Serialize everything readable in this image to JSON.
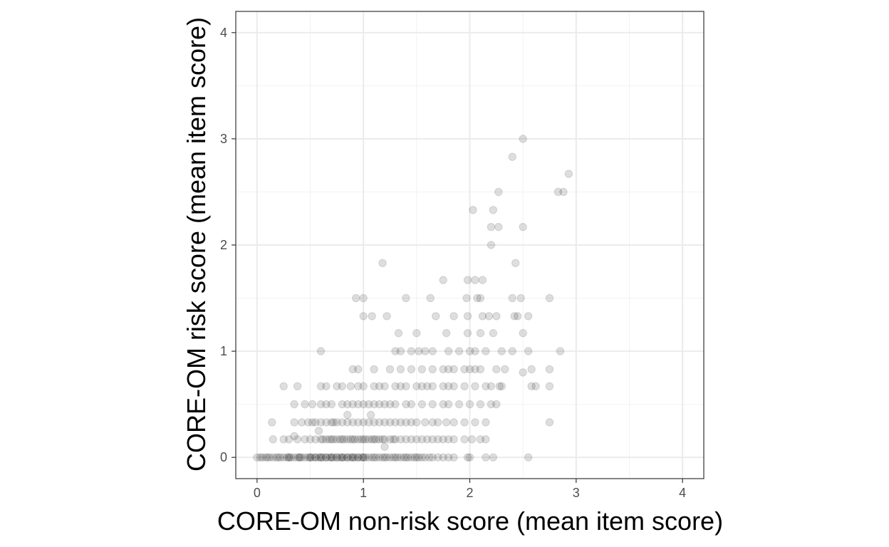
{
  "chart_data": {
    "type": "scatter",
    "title": "",
    "xlabel": "CORE-OM non-risk score (mean item score)",
    "ylabel": "CORE-OM risk score (mean item score)",
    "xlim": [
      -0.2,
      4.2
    ],
    "ylim": [
      -0.2,
      4.2
    ],
    "x_ticks": [
      0,
      1,
      2,
      3,
      4
    ],
    "y_ticks": [
      0,
      1,
      2,
      3,
      4
    ],
    "x_tick_labels": [
      "0",
      "1",
      "2",
      "3",
      "4"
    ],
    "y_tick_labels": [
      "0",
      "1",
      "2",
      "3",
      "4"
    ],
    "grid": true,
    "legend": "none",
    "point_color": "#000000",
    "point_alpha": 0.13,
    "points": [
      [
        0.0,
        0
      ],
      [
        0.03,
        0
      ],
      [
        0.05,
        0
      ],
      [
        0.08,
        0
      ],
      [
        0.1,
        0
      ],
      [
        0.12,
        0
      ],
      [
        0.15,
        0
      ],
      [
        0.18,
        0
      ],
      [
        0.2,
        0
      ],
      [
        0.22,
        0
      ],
      [
        0.25,
        0
      ],
      [
        0.28,
        0
      ],
      [
        0.3,
        0
      ],
      [
        0.32,
        0
      ],
      [
        0.35,
        0
      ],
      [
        0.38,
        0
      ],
      [
        0.4,
        0
      ],
      [
        0.42,
        0
      ],
      [
        0.45,
        0
      ],
      [
        0.48,
        0
      ],
      [
        0.5,
        0
      ],
      [
        0.52,
        0
      ],
      [
        0.55,
        0
      ],
      [
        0.58,
        0
      ],
      [
        0.6,
        0
      ],
      [
        0.62,
        0
      ],
      [
        0.65,
        0
      ],
      [
        0.68,
        0
      ],
      [
        0.7,
        0
      ],
      [
        0.72,
        0
      ],
      [
        0.75,
        0
      ],
      [
        0.78,
        0
      ],
      [
        0.8,
        0
      ],
      [
        0.82,
        0
      ],
      [
        0.85,
        0
      ],
      [
        0.88,
        0
      ],
      [
        0.9,
        0
      ],
      [
        0.92,
        0
      ],
      [
        0.95,
        0
      ],
      [
        0.98,
        0
      ],
      [
        1.0,
        0
      ],
      [
        1.02,
        0
      ],
      [
        1.05,
        0
      ],
      [
        1.08,
        0
      ],
      [
        1.1,
        0
      ],
      [
        1.12,
        0
      ],
      [
        1.15,
        0
      ],
      [
        1.18,
        0
      ],
      [
        1.2,
        0
      ],
      [
        1.22,
        0
      ],
      [
        1.25,
        0
      ],
      [
        1.28,
        0
      ],
      [
        1.3,
        0
      ],
      [
        1.32,
        0
      ],
      [
        1.35,
        0
      ],
      [
        1.38,
        0
      ],
      [
        1.4,
        0
      ],
      [
        1.42,
        0
      ],
      [
        1.45,
        0
      ],
      [
        1.48,
        0
      ],
      [
        1.5,
        0
      ],
      [
        1.52,
        0
      ],
      [
        1.55,
        0
      ],
      [
        1.58,
        0
      ],
      [
        1.62,
        0
      ],
      [
        1.65,
        0
      ],
      [
        1.7,
        0
      ],
      [
        1.75,
        0
      ],
      [
        1.8,
        0
      ],
      [
        1.85,
        0
      ],
      [
        1.98,
        0
      ],
      [
        2.0,
        0
      ],
      [
        2.15,
        0
      ],
      [
        2.22,
        0
      ],
      [
        2.55,
        0
      ],
      [
        0.5,
        0
      ],
      [
        0.6,
        0
      ],
      [
        0.7,
        0
      ],
      [
        0.8,
        0
      ],
      [
        0.9,
        0
      ],
      [
        1.0,
        0
      ],
      [
        0.55,
        0
      ],
      [
        0.65,
        0
      ],
      [
        0.75,
        0
      ],
      [
        0.85,
        0
      ],
      [
        0.95,
        0
      ],
      [
        0.3,
        0
      ],
      [
        0.4,
        0
      ],
      [
        0.15,
        0.17
      ],
      [
        0.25,
        0.17
      ],
      [
        0.3,
        0.17
      ],
      [
        0.38,
        0.17
      ],
      [
        0.45,
        0.17
      ],
      [
        0.5,
        0.17
      ],
      [
        0.55,
        0.17
      ],
      [
        0.6,
        0.17
      ],
      [
        0.62,
        0.17
      ],
      [
        0.65,
        0.17
      ],
      [
        0.68,
        0.17
      ],
      [
        0.7,
        0.17
      ],
      [
        0.72,
        0.17
      ],
      [
        0.75,
        0.17
      ],
      [
        0.78,
        0.17
      ],
      [
        0.8,
        0.17
      ],
      [
        0.82,
        0.17
      ],
      [
        0.85,
        0.17
      ],
      [
        0.88,
        0.17
      ],
      [
        0.9,
        0.17
      ],
      [
        0.92,
        0.17
      ],
      [
        0.95,
        0.17
      ],
      [
        0.98,
        0.17
      ],
      [
        1.0,
        0.17
      ],
      [
        1.02,
        0.17
      ],
      [
        1.05,
        0.17
      ],
      [
        1.08,
        0.17
      ],
      [
        1.1,
        0.17
      ],
      [
        1.12,
        0.17
      ],
      [
        1.15,
        0.17
      ],
      [
        1.18,
        0.17
      ],
      [
        1.2,
        0.17
      ],
      [
        1.25,
        0.17
      ],
      [
        1.28,
        0.17
      ],
      [
        1.3,
        0.17
      ],
      [
        1.35,
        0.17
      ],
      [
        1.4,
        0.17
      ],
      [
        1.45,
        0.17
      ],
      [
        1.5,
        0.17
      ],
      [
        1.55,
        0.17
      ],
      [
        1.6,
        0.17
      ],
      [
        1.65,
        0.17
      ],
      [
        1.7,
        0.17
      ],
      [
        1.75,
        0.17
      ],
      [
        1.8,
        0.17
      ],
      [
        1.85,
        0.17
      ],
      [
        1.95,
        0.17
      ],
      [
        2.02,
        0.17
      ],
      [
        2.1,
        0.17
      ],
      [
        2.15,
        0.17
      ],
      [
        0.14,
        0.33
      ],
      [
        0.35,
        0.33
      ],
      [
        0.42,
        0.33
      ],
      [
        0.48,
        0.33
      ],
      [
        0.52,
        0.33
      ],
      [
        0.55,
        0.33
      ],
      [
        0.6,
        0.33
      ],
      [
        0.65,
        0.33
      ],
      [
        0.7,
        0.33
      ],
      [
        0.72,
        0.33
      ],
      [
        0.75,
        0.33
      ],
      [
        0.8,
        0.33
      ],
      [
        0.85,
        0.33
      ],
      [
        0.9,
        0.33
      ],
      [
        0.95,
        0.33
      ],
      [
        1.0,
        0.33
      ],
      [
        1.05,
        0.33
      ],
      [
        1.1,
        0.33
      ],
      [
        1.15,
        0.33
      ],
      [
        1.2,
        0.33
      ],
      [
        1.25,
        0.33
      ],
      [
        1.3,
        0.33
      ],
      [
        1.35,
        0.33
      ],
      [
        1.4,
        0.33
      ],
      [
        1.45,
        0.33
      ],
      [
        1.5,
        0.33
      ],
      [
        1.58,
        0.33
      ],
      [
        1.65,
        0.33
      ],
      [
        1.7,
        0.33
      ],
      [
        1.78,
        0.33
      ],
      [
        1.85,
        0.33
      ],
      [
        1.95,
        0.33
      ],
      [
        2.05,
        0.33
      ],
      [
        2.15,
        0.33
      ],
      [
        2.75,
        0.33
      ],
      [
        0.35,
        0.5
      ],
      [
        0.45,
        0.5
      ],
      [
        0.52,
        0.5
      ],
      [
        0.6,
        0.5
      ],
      [
        0.65,
        0.5
      ],
      [
        0.7,
        0.5
      ],
      [
        0.8,
        0.5
      ],
      [
        0.85,
        0.5
      ],
      [
        0.9,
        0.5
      ],
      [
        0.95,
        0.5
      ],
      [
        1.0,
        0.5
      ],
      [
        1.05,
        0.5
      ],
      [
        1.1,
        0.5
      ],
      [
        1.15,
        0.5
      ],
      [
        1.2,
        0.5
      ],
      [
        1.25,
        0.5
      ],
      [
        1.3,
        0.5
      ],
      [
        1.4,
        0.5
      ],
      [
        1.45,
        0.5
      ],
      [
        1.55,
        0.5
      ],
      [
        1.65,
        0.5
      ],
      [
        1.75,
        0.5
      ],
      [
        1.8,
        0.5
      ],
      [
        1.9,
        0.5
      ],
      [
        2.0,
        0.5
      ],
      [
        2.1,
        0.5
      ],
      [
        2.2,
        0.5
      ],
      [
        2.25,
        0.5
      ],
      [
        0.25,
        0.67
      ],
      [
        0.38,
        0.67
      ],
      [
        0.6,
        0.67
      ],
      [
        0.65,
        0.67
      ],
      [
        0.75,
        0.67
      ],
      [
        0.8,
        0.67
      ],
      [
        0.88,
        0.67
      ],
      [
        0.95,
        0.67
      ],
      [
        1.0,
        0.67
      ],
      [
        1.1,
        0.67
      ],
      [
        1.15,
        0.67
      ],
      [
        1.2,
        0.67
      ],
      [
        1.3,
        0.67
      ],
      [
        1.35,
        0.67
      ],
      [
        1.4,
        0.67
      ],
      [
        1.5,
        0.67
      ],
      [
        1.55,
        0.67
      ],
      [
        1.6,
        0.67
      ],
      [
        1.65,
        0.67
      ],
      [
        1.75,
        0.67
      ],
      [
        1.8,
        0.67
      ],
      [
        1.85,
        0.67
      ],
      [
        1.95,
        0.67
      ],
      [
        2.05,
        0.67
      ],
      [
        2.15,
        0.67
      ],
      [
        2.2,
        0.67
      ],
      [
        2.28,
        0.67
      ],
      [
        2.3,
        0.67
      ],
      [
        2.58,
        0.67
      ],
      [
        2.62,
        0.67
      ],
      [
        2.75,
        0.67
      ],
      [
        0.9,
        0.83
      ],
      [
        0.95,
        0.83
      ],
      [
        1.1,
        0.83
      ],
      [
        1.25,
        0.83
      ],
      [
        1.35,
        0.83
      ],
      [
        1.45,
        0.83
      ],
      [
        1.55,
        0.83
      ],
      [
        1.65,
        0.83
      ],
      [
        1.75,
        0.83
      ],
      [
        1.8,
        0.83
      ],
      [
        1.85,
        0.83
      ],
      [
        1.95,
        0.83
      ],
      [
        2.0,
        0.83
      ],
      [
        2.05,
        0.83
      ],
      [
        2.1,
        0.83
      ],
      [
        2.25,
        0.83
      ],
      [
        2.33,
        0.83
      ],
      [
        2.5,
        0.8
      ],
      [
        2.58,
        0.83
      ],
      [
        2.75,
        0.83
      ],
      [
        0.6,
        1.0
      ],
      [
        1.3,
        1.0
      ],
      [
        1.35,
        1.0
      ],
      [
        1.45,
        1.0
      ],
      [
        1.52,
        1.0
      ],
      [
        1.58,
        1.0
      ],
      [
        1.65,
        1.0
      ],
      [
        1.8,
        1.0
      ],
      [
        1.9,
        1.0
      ],
      [
        2.0,
        1.0
      ],
      [
        2.05,
        1.0
      ],
      [
        2.15,
        1.0
      ],
      [
        2.3,
        1.0
      ],
      [
        2.4,
        1.0
      ],
      [
        2.55,
        1.0
      ],
      [
        2.85,
        1.0
      ],
      [
        1.33,
        1.17
      ],
      [
        1.5,
        1.17
      ],
      [
        1.78,
        1.17
      ],
      [
        1.98,
        1.17
      ],
      [
        2.1,
        1.17
      ],
      [
        2.22,
        1.17
      ],
      [
        2.5,
        1.17
      ],
      [
        1.08,
        1.33
      ],
      [
        1.22,
        1.33
      ],
      [
        1.68,
        1.33
      ],
      [
        1.85,
        1.33
      ],
      [
        1.98,
        1.33
      ],
      [
        2.12,
        1.33
      ],
      [
        2.18,
        1.33
      ],
      [
        2.25,
        1.33
      ],
      [
        2.42,
        1.33
      ],
      [
        2.45,
        1.33
      ],
      [
        2.55,
        1.33
      ],
      [
        0.93,
        1.5
      ],
      [
        1.0,
        1.5
      ],
      [
        1.4,
        1.5
      ],
      [
        1.63,
        1.5
      ],
      [
        1.97,
        1.5
      ],
      [
        2.07,
        1.5
      ],
      [
        2.1,
        1.5
      ],
      [
        2.4,
        1.5
      ],
      [
        2.48,
        1.5
      ],
      [
        2.75,
        1.5
      ],
      [
        1.0,
        1.33
      ],
      [
        1.75,
        1.67
      ],
      [
        1.98,
        1.67
      ],
      [
        2.05,
        1.67
      ],
      [
        2.12,
        1.67
      ],
      [
        1.18,
        1.83
      ],
      [
        2.43,
        1.83
      ],
      [
        2.2,
        2.0
      ],
      [
        2.2,
        2.17
      ],
      [
        2.27,
        2.17
      ],
      [
        2.5,
        2.17
      ],
      [
        2.03,
        2.33
      ],
      [
        2.22,
        2.33
      ],
      [
        2.27,
        2.5
      ],
      [
        2.83,
        2.5
      ],
      [
        2.88,
        2.5
      ],
      [
        2.93,
        2.67
      ],
      [
        2.4,
        2.83
      ],
      [
        2.5,
        3.0
      ],
      [
        0.35,
        0.2
      ],
      [
        0.58,
        0.25
      ],
      [
        0.85,
        0.4
      ],
      [
        1.07,
        0.4
      ],
      [
        1.2,
        0.1
      ]
    ]
  }
}
